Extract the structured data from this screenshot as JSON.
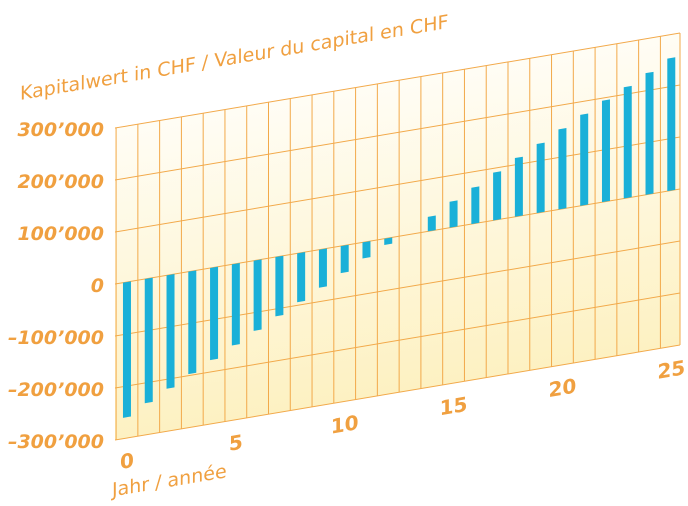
{
  "chart_data": {
    "type": "bar",
    "title": "Kapitalwert in CHF / Valeur du capital en CHF",
    "x_label": "Jahr / année",
    "x": [
      0,
      1,
      2,
      3,
      4,
      5,
      6,
      7,
      8,
      9,
      10,
      11,
      12,
      13,
      14,
      15,
      16,
      17,
      18,
      19,
      20,
      21,
      22,
      23,
      24,
      25
    ],
    "values": [
      -260000,
      -239000,
      -218000,
      -197000,
      -177000,
      -156000,
      -135000,
      -114000,
      -94000,
      -73000,
      -52000,
      -31000,
      -12000,
      null,
      28000,
      50000,
      70000,
      92000,
      113000,
      133000,
      154000,
      175000,
      195000,
      214000,
      234000,
      255000
    ],
    "color": "#1ab0d8",
    "xlim": [
      -0.55,
      25.4
    ],
    "xticks": [
      0,
      5,
      10,
      15,
      20,
      25
    ],
    "ylim": [
      -300000,
      300000
    ],
    "yticks": [
      {
        "value": -300000,
        "label": "–300’000"
      },
      {
        "value": -200000,
        "label": "–200’000"
      },
      {
        "value": -100000,
        "label": "–100’000"
      },
      0,
      {
        "value": 100000,
        "label": "100’000"
      },
      {
        "value": 200000,
        "label": "200’000"
      },
      {
        "value": 300000,
        "label": "300’000"
      }
    ],
    "grid": true
  }
}
